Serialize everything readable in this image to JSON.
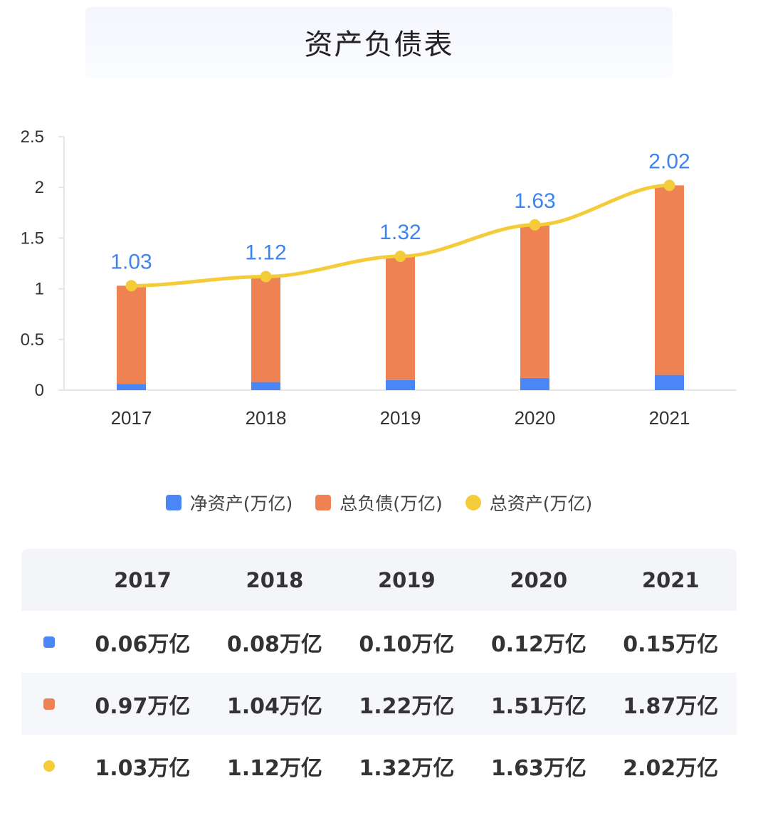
{
  "title": "资产负债表",
  "colors": {
    "net_assets": "#4a86f5",
    "total_liabilities": "#ee8253",
    "total_assets": "#f4cc3a",
    "label": "#3c84f0"
  },
  "legend": [
    {
      "label": "净资产(万亿)",
      "shape": "square",
      "color": "#4a86f5"
    },
    {
      "label": "总负债(万亿)",
      "shape": "square",
      "color": "#ee8253"
    },
    {
      "label": "总资产(万亿)",
      "shape": "dot",
      "color": "#f4cc3a"
    }
  ],
  "chart_data": {
    "type": "bar",
    "stacked": true,
    "categories": [
      "2017",
      "2018",
      "2019",
      "2020",
      "2021"
    ],
    "series": [
      {
        "name": "净资产(万亿)",
        "type": "bar",
        "values": [
          0.06,
          0.08,
          0.1,
          0.12,
          0.15
        ]
      },
      {
        "name": "总负债(万亿)",
        "type": "bar",
        "values": [
          0.97,
          1.04,
          1.22,
          1.51,
          1.87
        ]
      },
      {
        "name": "总资产(万亿)",
        "type": "line",
        "values": [
          1.03,
          1.12,
          1.32,
          1.63,
          2.02
        ]
      }
    ],
    "data_labels": [
      "1.03",
      "1.12",
      "1.32",
      "1.63",
      "2.02"
    ],
    "yticks": [
      "0",
      "0.5",
      "1",
      "1.5",
      "2",
      "2.5"
    ],
    "ylim": [
      0,
      2.5
    ],
    "grid": false,
    "legend_position": "bottom"
  },
  "table": {
    "headers": [
      "2017",
      "2018",
      "2019",
      "2020",
      "2021"
    ],
    "rows": [
      {
        "marker": "square",
        "color": "#4a86f5",
        "cells": [
          "0.06万亿",
          "0.08万亿",
          "0.10万亿",
          "0.12万亿",
          "0.15万亿"
        ]
      },
      {
        "marker": "square",
        "color": "#ee8253",
        "cells": [
          "0.97万亿",
          "1.04万亿",
          "1.22万亿",
          "1.51万亿",
          "1.87万亿"
        ]
      },
      {
        "marker": "dot",
        "color": "#f4cc3a",
        "cells": [
          "1.03万亿",
          "1.12万亿",
          "1.32万亿",
          "1.63万亿",
          "2.02万亿"
        ]
      }
    ]
  }
}
